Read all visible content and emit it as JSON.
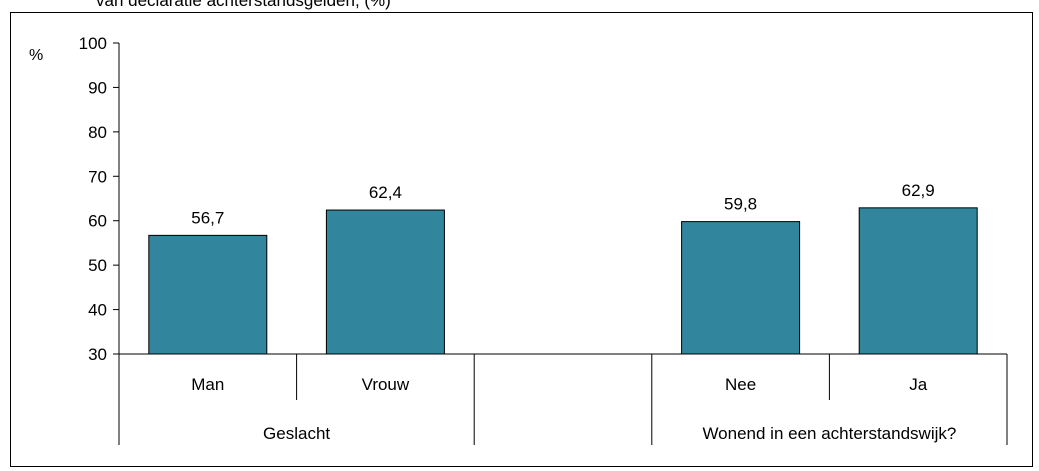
{
  "caption": "van declaratie achterstandsgelden, (%)",
  "chart_data": {
    "type": "bar",
    "ylabel": "%",
    "ylim": [
      30,
      100
    ],
    "yticks": [
      30,
      40,
      50,
      60,
      70,
      80,
      90,
      100
    ],
    "categories": [
      "Man",
      "Vrouw",
      "",
      "Nee",
      "Ja"
    ],
    "values": [
      56.7,
      62.4,
      null,
      59.8,
      62.9
    ],
    "data_labels": [
      "56,7",
      "62,4",
      "",
      "59,8",
      "62,9"
    ],
    "groups": [
      {
        "label": "Geslacht",
        "span": [
          0,
          1
        ]
      },
      {
        "label": "",
        "span": [
          2,
          2
        ]
      },
      {
        "label": "Wonend in een achterstandswijk?",
        "span": [
          3,
          4
        ]
      }
    ],
    "bar_color": "#31859c",
    "grid": false,
    "legend": "none"
  }
}
